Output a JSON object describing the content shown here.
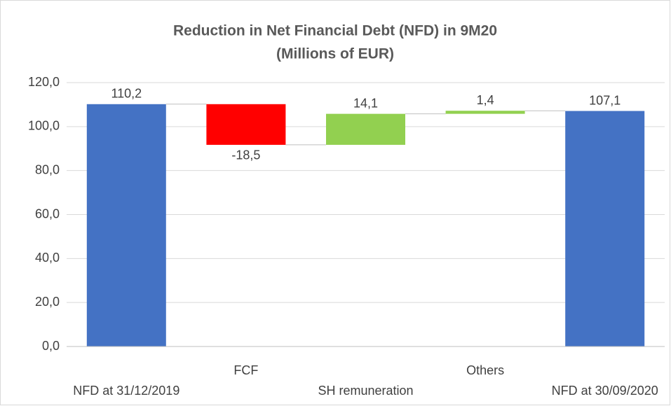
{
  "chart_data": {
    "type": "waterfall",
    "title": "Reduction in Net Financial Debt (NFD) in 9M20",
    "subtitle": "(Millions of EUR)",
    "categories": [
      "NFD at 31/12/2019",
      "FCF",
      "SH remuneration",
      "Others",
      "NFD at 30/09/2020"
    ],
    "values": [
      110.2,
      -18.5,
      14.1,
      1.4,
      107.1
    ],
    "value_labels": [
      "110,2",
      "-18,5",
      "14,1",
      "1,4",
      "107,1"
    ],
    "measure": [
      "absolute",
      "relative",
      "relative",
      "relative",
      "absolute"
    ],
    "colors": [
      "#4472c4",
      "#ff0000",
      "#92d050",
      "#92d050",
      "#4472c4"
    ],
    "ylim": [
      0,
      120
    ],
    "yticks": [
      {
        "value": 0,
        "label": "0,0"
      },
      {
        "value": 20,
        "label": "20,0"
      },
      {
        "value": 40,
        "label": "40,0"
      },
      {
        "value": 60,
        "label": "60,0"
      },
      {
        "value": 80,
        "label": "80,0"
      },
      {
        "value": 100,
        "label": "100,0"
      },
      {
        "value": 120,
        "label": "120,0"
      }
    ],
    "grid": true
  }
}
